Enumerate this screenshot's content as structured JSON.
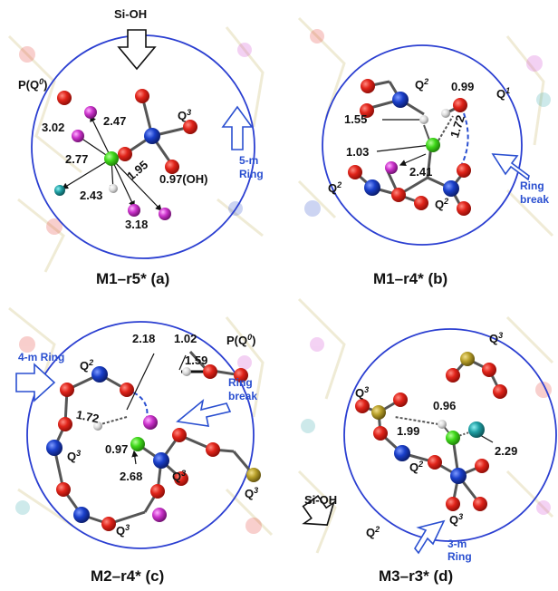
{
  "colors": {
    "circle": "#2b3fd1",
    "oxygen": "#e0241a",
    "silicon": "#1a3fc9",
    "hydrogen": "#d9d9d9",
    "proton": "#3fd81a",
    "sodium": "#cc33cc",
    "cyan": "#1f9fa3",
    "phosphorus": "#b8a02a",
    "annotation": "#2a4fd0"
  },
  "panels": [
    {
      "caption": "M1–r5* (a)",
      "labels": {
        "top": "Si-OH",
        "p": "P(Q",
        "p_sup": "0",
        "p_end": ")",
        "q3": "Q",
        "q3_sup": "3",
        "d1": "2.47",
        "d2": "3.02",
        "d3": "1.95",
        "d4": "2.77",
        "d5": "2.43",
        "d6": "0.97(OH)",
        "d7": "3.18",
        "ring": "5-m",
        "ring2": "Ring"
      }
    },
    {
      "caption": "M1–r4* (b)",
      "labels": {
        "q2a": "Q",
        "q2a_sup": "2",
        "d1": "0.99",
        "q1": "Q",
        "q1_sup": "1",
        "d2": "1.55",
        "d3": "1.72",
        "d4": "1.03",
        "d5": "2.41",
        "q2b": "Q",
        "q2b_sup": "2",
        "q2c": "Q",
        "q2c_sup": "2",
        "rb": "Ring",
        "rb2": "break"
      }
    },
    {
      "caption": "M2–r4* (c)",
      "labels": {
        "d1": "2.18",
        "d2": "1.02",
        "p": "P(Q",
        "p_sup": "0",
        "p_end": ")",
        "ring": "4-m Ring",
        "q2": "Q",
        "q2_sup": "2",
        "d3": "1.59",
        "rb": "Ring",
        "rb2": "break",
        "d4": "1.72",
        "q3a": "Q",
        "q3a_sup": "3",
        "d5": "0.97",
        "q3b": "Q",
        "q3b_sup": "3",
        "q3c": "Q",
        "q3c_sup": "3",
        "d6": "2.68",
        "q3d": "Q",
        "q3d_sup": "3"
      }
    },
    {
      "caption": "M3–r3* (d)",
      "labels": {
        "q3a": "Q",
        "q3a_sup": "3",
        "q3b": "Q",
        "q3b_sup": "3",
        "d1": "0.96",
        "d2": "1.99",
        "d3": "2.29",
        "q2": "Q",
        "q2_sup": "2",
        "top": "Si-OH",
        "q3c": "Q",
        "q3c_sup": "3",
        "q2b": "Q",
        "q2b_sup": "2",
        "ring": "3-m",
        "ring2": "Ring"
      }
    }
  ]
}
